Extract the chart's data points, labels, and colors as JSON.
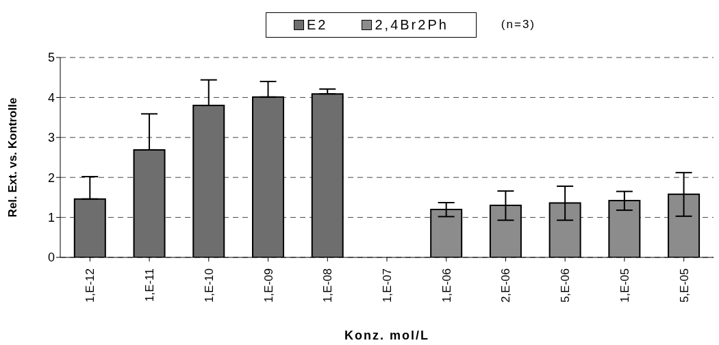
{
  "chart_data": {
    "type": "bar",
    "xlabel": "Konz. mol/L",
    "ylabel": "Rel. Ext. vs. Kontrolle",
    "categories": [
      "1,E-12",
      "1,E-11",
      "1,E-10",
      "1,E-09",
      "1,E-08",
      "1,E-07",
      "1,E-06",
      "2,E-06",
      "5,E-06",
      "1,E-05",
      "5,E-05"
    ],
    "series": [
      {
        "name": "E2",
        "color": "#6e6e6e",
        "values": [
          1.46,
          2.69,
          3.8,
          4.01,
          4.09,
          null,
          null,
          null,
          null,
          null,
          null
        ],
        "errors": [
          [
            1.46,
            2.02
          ],
          [
            2.69,
            3.59
          ],
          [
            3.8,
            4.44
          ],
          [
            4.01,
            4.4
          ],
          [
            4.09,
            4.21
          ],
          null,
          null,
          null,
          null,
          null,
          null
        ]
      },
      {
        "name": "2,4Br2Ph",
        "color": "#8c8c8c",
        "values": [
          null,
          null,
          null,
          null,
          null,
          null,
          1.2,
          1.3,
          1.36,
          1.42,
          1.58
        ],
        "errors": [
          null,
          null,
          null,
          null,
          null,
          null,
          [
            1.02,
            1.37
          ],
          [
            0.93,
            1.66
          ],
          [
            0.93,
            1.78
          ],
          [
            1.18,
            1.65
          ],
          [
            1.03,
            2.12
          ]
        ]
      }
    ],
    "ylim": [
      0,
      5
    ],
    "yticks": [
      0,
      1,
      2,
      3,
      4,
      5
    ],
    "grid": "y",
    "legend": "top",
    "annotations": [
      "(n=3)"
    ]
  }
}
